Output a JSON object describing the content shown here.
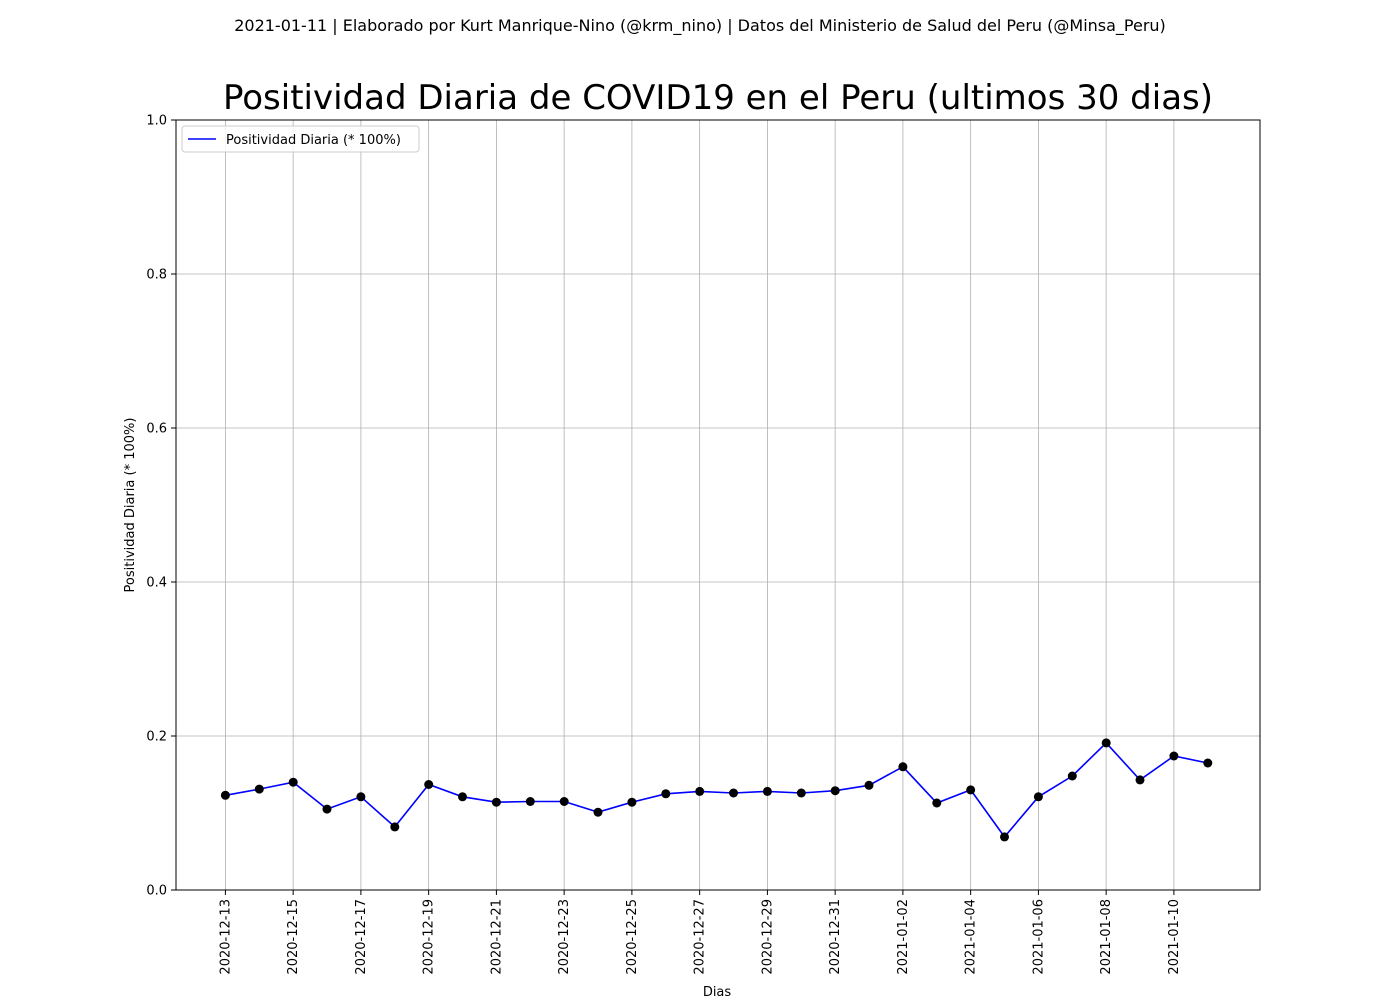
{
  "header": {
    "suptitle": "2021-01-11 | Elaborado por Kurt Manrique-Nino (@krm_nino) | Datos del Ministerio de Salud del Peru (@Minsa_Peru)"
  },
  "chart_data": {
    "type": "line",
    "title": "Positividad Diaria de COVID19 en el Peru (ultimos 30 dias)",
    "xlabel": "Dias",
    "ylabel": "Positividad Diaria (* 100%)",
    "ylim": [
      0,
      1.0
    ],
    "yticks": [
      0.0,
      0.2,
      0.4,
      0.6,
      0.8,
      1.0
    ],
    "ytick_labels": [
      "0.0",
      "0.2",
      "0.4",
      "0.6",
      "0.8",
      "1.0"
    ],
    "xlim": [
      "2020-12-11 13:00",
      "2021-01-12 13:00"
    ],
    "xtick_labels": [
      "2020-12-13",
      "2020-12-15",
      "2020-12-17",
      "2020-12-19",
      "2020-12-21",
      "2020-12-23",
      "2020-12-25",
      "2020-12-27",
      "2020-12-29",
      "2020-12-31",
      "2021-01-02",
      "2021-01-04",
      "2021-01-06",
      "2021-01-08",
      "2021-01-10"
    ],
    "grid": true,
    "legend_position": "top-left",
    "line_color": "#0000ff",
    "marker_color": "#000000",
    "series": [
      {
        "name": "Positividad Diaria (* 100%)",
        "x": [
          "2020-12-13",
          "2020-12-14",
          "2020-12-15",
          "2020-12-16",
          "2020-12-17",
          "2020-12-18",
          "2020-12-19",
          "2020-12-20",
          "2020-12-21",
          "2020-12-22",
          "2020-12-23",
          "2020-12-24",
          "2020-12-25",
          "2020-12-26",
          "2020-12-27",
          "2020-12-28",
          "2020-12-29",
          "2020-12-30",
          "2020-12-31",
          "2021-01-01",
          "2021-01-02",
          "2021-01-03",
          "2021-01-04",
          "2021-01-05",
          "2021-01-06",
          "2021-01-07",
          "2021-01-08",
          "2021-01-09",
          "2021-01-10",
          "2021-01-11"
        ],
        "values": [
          0.123,
          0.131,
          0.14,
          0.105,
          0.121,
          0.082,
          0.137,
          0.121,
          0.114,
          0.115,
          0.115,
          0.101,
          0.114,
          0.125,
          0.128,
          0.126,
          0.128,
          0.126,
          0.129,
          0.136,
          0.16,
          0.113,
          0.13,
          0.069,
          0.121,
          0.148,
          0.191,
          0.143,
          0.174,
          0.165
        ]
      }
    ]
  }
}
